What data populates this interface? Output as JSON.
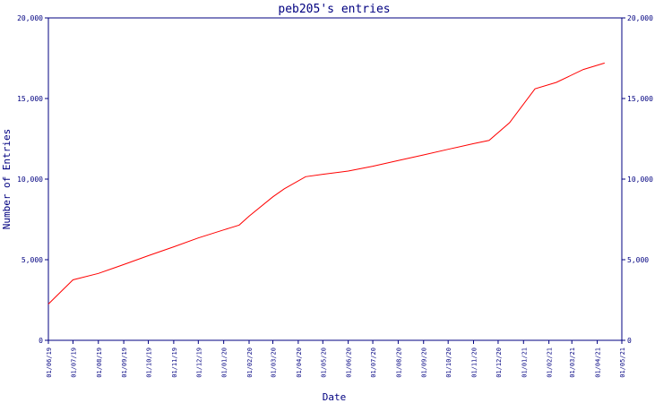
{
  "chart_data": {
    "type": "line",
    "title": "peb205's entries",
    "xlabel": "Date",
    "ylabel": "Number of Entries",
    "ylim": [
      0,
      20000
    ],
    "yticks": [
      {
        "value": 0,
        "label": "0"
      },
      {
        "value": 5000,
        "label": "5,000"
      },
      {
        "value": 10000,
        "label": "10,000"
      },
      {
        "value": 15000,
        "label": "15,000"
      },
      {
        "value": 20000,
        "label": "20,000"
      }
    ],
    "xticks": [
      "01/06/19",
      "01/07/19",
      "01/08/19",
      "01/09/19",
      "01/10/19",
      "01/11/19",
      "01/12/19",
      "01/01/20",
      "01/02/20",
      "01/03/20",
      "01/04/20",
      "01/05/20",
      "01/06/20",
      "01/07/20",
      "01/08/20",
      "01/09/20",
      "01/10/20",
      "01/11/20",
      "01/12/20",
      "01/01/21",
      "01/02/21",
      "01/03/21",
      "01/04/21",
      "01/05/21"
    ],
    "grid": false,
    "line_color": "#ff0000",
    "axis_color": "#000080",
    "series": [
      {
        "x": [
          "2019-06-01",
          "2019-07-01",
          "2019-08-01",
          "2019-09-01",
          "2019-10-01",
          "2019-11-01",
          "2019-12-01",
          "2020-01-01",
          "2020-01-20",
          "2020-02-01",
          "2020-03-01",
          "2020-03-15",
          "2020-04-10",
          "2020-05-01",
          "2020-06-01",
          "2020-07-01",
          "2020-08-01",
          "2020-09-01",
          "2020-10-01",
          "2020-11-01",
          "2020-11-20",
          "2020-12-15",
          "2021-01-15",
          "2021-02-10",
          "2021-03-15",
          "2021-04-10"
        ],
        "values": [
          2250,
          3750,
          4150,
          4700,
          5250,
          5800,
          6350,
          6850,
          7150,
          7700,
          8900,
          9400,
          10150,
          10300,
          10500,
          10800,
          11150,
          11500,
          11850,
          12200,
          12400,
          13500,
          15600,
          16000,
          16800,
          17200
        ]
      }
    ]
  }
}
